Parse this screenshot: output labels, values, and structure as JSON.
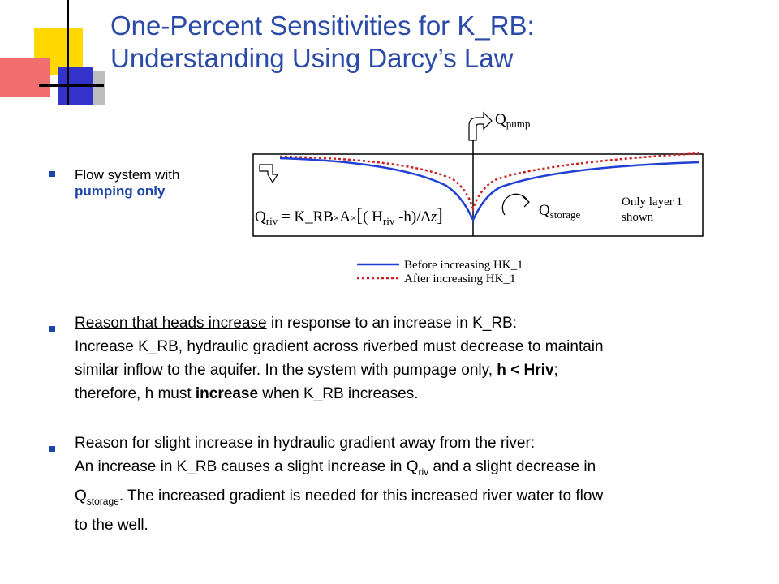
{
  "title": {
    "line1": "One-Percent Sensitivities for K_RB:",
    "line2": "Understanding Using Darcy’s Law"
  },
  "colors": {
    "title": "#2b4baa",
    "bullet": "#1b45a8",
    "before_line": "#1f3fd6",
    "after_line": "#cc1f1f"
  },
  "flow_bullet": {
    "text": "Flow system with ",
    "emphasis": "pumping only"
  },
  "diagram": {
    "q_pump": {
      "sym": "Q",
      "sub": "pump"
    },
    "q_storage": {
      "sym": "Q",
      "sub": "storage"
    },
    "note": {
      "line1": "Only layer 1",
      "line2": "shown"
    },
    "equation": {
      "q": "Q",
      "q_sub": "riv",
      "eq": " = K_RB",
      "times1": "×",
      "a": "A",
      "times2": "×",
      "bracket_open": "[",
      "paren": "( H",
      "h_sub": "riv",
      "rest": " -h)/",
      "delta": "Δ",
      "z": "z",
      "bracket_close": "]"
    },
    "legend": {
      "before": "Before increasing HK_1",
      "after": "After increasing HK_1"
    }
  },
  "reason1": {
    "heading": "Reason that heads increase",
    "heading_rest": " in response to an increase in K_RB:",
    "line2": "Increase K_RB, hydraulic gradient across riverbed must decrease to maintain",
    "line3_a": "similar inflow to the aquifer. In the system with pumpage only, ",
    "line3_b": "h < Hriv",
    "line3_c": ";",
    "line4_a": "therefore, h must ",
    "line4_b": "increase",
    "line4_c": " when K_RB increases."
  },
  "reason2": {
    "heading": "Reason for slight increase in hydraulic gradient away from the river",
    "heading_rest": ":",
    "line2_a": "An increase in K_RB causes a slight increase in Q",
    "line2_sub": "riv",
    "line2_b": " and a slight decrease in",
    "line3_q": "Q",
    "line3_sub": "storage",
    "line3_rest": ". The increased gradient is needed for this increased river water to flow",
    "line4": "to the well."
  }
}
